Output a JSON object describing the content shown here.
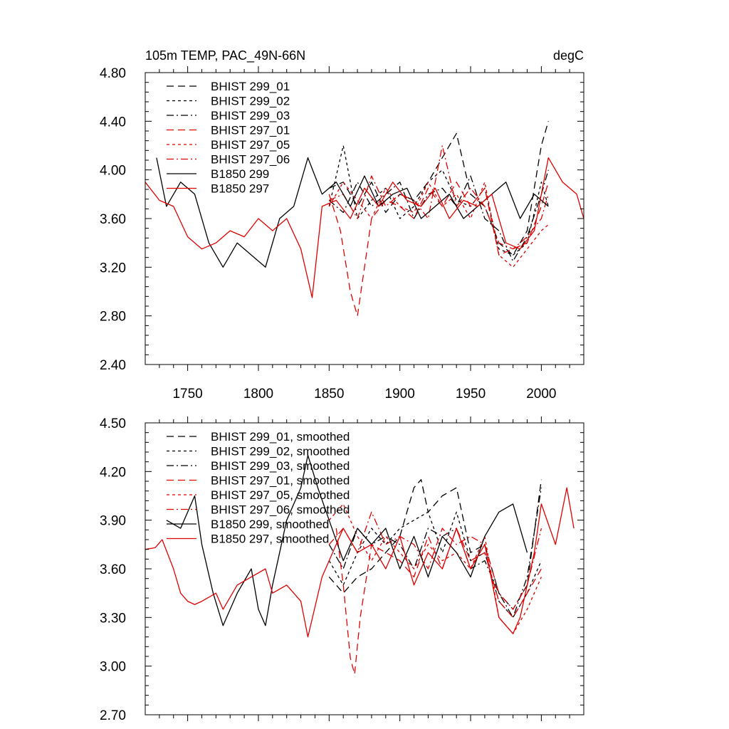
{
  "chart_data": [
    {
      "type": "line",
      "title": "105m TEMP, PAC_49N-66N",
      "units": "degC",
      "xlim": [
        1720,
        2030
      ],
      "ylim": [
        2.4,
        4.8
      ],
      "x_ticks": [
        1750,
        1800,
        1850,
        1900,
        1950,
        2000
      ],
      "x_tick_labels": [
        "1750",
        "1800",
        "1850",
        "1900",
        "1950",
        "2000"
      ],
      "y_ticks": [
        2.4,
        2.8,
        3.2,
        3.6,
        4.0,
        4.4,
        4.8
      ],
      "y_tick_labels": [
        "2.40",
        "2.80",
        "3.20",
        "3.60",
        "4.00",
        "4.40",
        "4.80"
      ],
      "legend": [
        {
          "label": "BHIST 299_01",
          "color": "#000000",
          "dash": "long-dash"
        },
        {
          "label": "BHIST 299_02",
          "color": "#000000",
          "dash": "short-dash"
        },
        {
          "label": "BHIST 299_03",
          "color": "#000000",
          "dash": "dash-dot"
        },
        {
          "label": "BHIST 297_01",
          "color": "#e00000",
          "dash": "long-dash"
        },
        {
          "label": "BHIST 297_05",
          "color": "#e00000",
          "dash": "short-dash"
        },
        {
          "label": "BHIST 297_06",
          "color": "#e00000",
          "dash": "dash-dot"
        },
        {
          "label": "B1850 299",
          "color": "#000000",
          "dash": "solid"
        },
        {
          "label": "B1850 297",
          "color": "#e00000",
          "dash": "solid"
        }
      ],
      "series": [
        {
          "name": "BHIST 299_01",
          "color": "#000000",
          "dash": "long-dash",
          "x": [
            1850,
            1860,
            1870,
            1880,
            1890,
            1900,
            1910,
            1920,
            1930,
            1940,
            1950,
            1960,
            1970,
            1980,
            1990,
            2000,
            2005
          ],
          "y": [
            3.85,
            3.9,
            3.7,
            3.9,
            3.65,
            3.8,
            3.75,
            3.9,
            4.1,
            4.3,
            3.8,
            3.7,
            3.4,
            3.3,
            3.5,
            4.2,
            4.4
          ]
        },
        {
          "name": "BHIST 299_02",
          "color": "#000000",
          "dash": "short-dash",
          "x": [
            1850,
            1860,
            1870,
            1880,
            1890,
            1900,
            1910,
            1920,
            1930,
            1940,
            1950,
            1960,
            1970,
            1980,
            1990,
            2000,
            2005
          ],
          "y": [
            3.7,
            4.2,
            3.6,
            3.75,
            3.85,
            3.6,
            3.7,
            3.9,
            4.0,
            3.75,
            3.7,
            3.85,
            3.35,
            3.3,
            3.4,
            3.9,
            3.7
          ]
        },
        {
          "name": "BHIST 299_03",
          "color": "#000000",
          "dash": "dash-dot",
          "x": [
            1850,
            1860,
            1870,
            1880,
            1890,
            1900,
            1910,
            1920,
            1930,
            1940,
            1950,
            1960,
            1970,
            1980,
            1990,
            2000,
            2005
          ],
          "y": [
            3.75,
            3.65,
            3.9,
            3.7,
            3.8,
            3.9,
            3.6,
            3.8,
            3.85,
            3.7,
            3.95,
            3.6,
            3.5,
            3.25,
            3.45,
            3.8,
            4.0
          ]
        },
        {
          "name": "BHIST 297_01",
          "color": "#e00000",
          "dash": "long-dash",
          "x": [
            1850,
            1858,
            1865,
            1870,
            1880,
            1890,
            1900,
            1910,
            1920,
            1930,
            1940,
            1950,
            1960,
            1970,
            1980,
            1990,
            2000,
            2005
          ],
          "y": [
            3.8,
            3.5,
            3.0,
            2.8,
            3.6,
            3.75,
            3.7,
            3.6,
            3.85,
            3.7,
            3.9,
            3.7,
            3.85,
            3.3,
            3.35,
            3.4,
            3.7,
            3.9
          ]
        },
        {
          "name": "BHIST 297_05",
          "color": "#e00000",
          "dash": "short-dash",
          "x": [
            1850,
            1860,
            1870,
            1880,
            1890,
            1900,
            1910,
            1920,
            1930,
            1940,
            1950,
            1960,
            1970,
            1980,
            1990,
            2000,
            2005
          ],
          "y": [
            3.7,
            3.9,
            3.75,
            3.6,
            3.85,
            3.7,
            3.65,
            3.9,
            3.7,
            3.8,
            3.6,
            3.9,
            3.3,
            3.2,
            3.35,
            3.5,
            3.55
          ]
        },
        {
          "name": "BHIST 297_06",
          "color": "#e00000",
          "dash": "dash-dot",
          "x": [
            1850,
            1860,
            1870,
            1880,
            1890,
            1900,
            1910,
            1920,
            1930,
            1940,
            1950,
            1960,
            1970,
            1980,
            1990,
            2000,
            2005
          ],
          "y": [
            3.75,
            3.8,
            3.6,
            3.95,
            3.7,
            3.8,
            3.75,
            3.6,
            4.2,
            3.7,
            3.85,
            3.7,
            3.4,
            3.35,
            3.45,
            3.6,
            3.8
          ]
        },
        {
          "name": "B1850 299",
          "color": "#000000",
          "dash": "solid",
          "x": [
            1728,
            1735,
            1745,
            1755,
            1765,
            1775,
            1785,
            1795,
            1805,
            1815,
            1825,
            1835,
            1845,
            1855,
            1865,
            1875,
            1885,
            1895,
            1905,
            1915,
            1925,
            1935,
            1945,
            1955,
            1965,
            1975,
            1985,
            1995,
            2005
          ],
          "y": [
            4.1,
            3.7,
            3.9,
            3.8,
            3.4,
            3.2,
            3.4,
            3.3,
            3.2,
            3.6,
            3.7,
            4.1,
            3.8,
            3.9,
            3.7,
            3.95,
            3.7,
            3.8,
            3.85,
            3.6,
            3.7,
            3.8,
            3.6,
            3.7,
            3.8,
            3.9,
            3.6,
            3.8,
            3.7
          ]
        },
        {
          "name": "B1850 297",
          "color": "#e00000",
          "dash": "solid",
          "x": [
            1720,
            1730,
            1740,
            1750,
            1760,
            1770,
            1780,
            1790,
            1800,
            1810,
            1820,
            1830,
            1838,
            1845,
            1855,
            1865,
            1875,
            1885,
            1895,
            1905,
            1915,
            1925,
            1935,
            1945,
            1955,
            1965,
            1975,
            1985,
            1995,
            2005,
            2015,
            2025,
            2030
          ],
          "y": [
            3.9,
            3.75,
            3.7,
            3.45,
            3.35,
            3.4,
            3.5,
            3.45,
            3.6,
            3.5,
            3.6,
            3.35,
            2.95,
            3.7,
            3.75,
            3.6,
            3.85,
            3.7,
            3.9,
            3.75,
            3.7,
            3.85,
            3.6,
            3.75,
            3.7,
            3.8,
            3.4,
            3.35,
            3.5,
            4.1,
            3.9,
            3.8,
            3.6
          ]
        }
      ]
    },
    {
      "type": "line",
      "title": "",
      "xlim": [
        1720,
        2030
      ],
      "ylim": [
        2.7,
        4.5
      ],
      "x_ticks": [
        1750,
        1800,
        1850,
        1900,
        1950,
        2000
      ],
      "y_ticks": [
        2.7,
        3.0,
        3.3,
        3.6,
        3.9,
        4.2,
        4.5
      ],
      "y_tick_labels": [
        "2.70",
        "3.00",
        "3.30",
        "3.60",
        "3.90",
        "4.20",
        "4.50"
      ],
      "legend": [
        {
          "label": "BHIST 299_01, smoothed",
          "color": "#000000",
          "dash": "long-dash"
        },
        {
          "label": "BHIST 299_02, smoothed",
          "color": "#000000",
          "dash": "short-dash"
        },
        {
          "label": "BHIST 299_03, smoothed",
          "color": "#000000",
          "dash": "dash-dot"
        },
        {
          "label": "BHIST 297_01, smoothed",
          "color": "#e00000",
          "dash": "long-dash"
        },
        {
          "label": "BHIST 297_05, smoothed",
          "color": "#e00000",
          "dash": "short-dash"
        },
        {
          "label": "BHIST 297_06, smoothed",
          "color": "#e00000",
          "dash": "dash-dot"
        },
        {
          "label": "B1850 299, smoothed",
          "color": "#000000",
          "dash": "solid"
        },
        {
          "label": "B1850 297, smoothed",
          "color": "#e00000",
          "dash": "solid"
        }
      ],
      "series": [
        {
          "name": "BHIST 299_01, smoothed",
          "color": "#000000",
          "dash": "long-dash",
          "x": [
            1850,
            1860,
            1870,
            1880,
            1890,
            1900,
            1910,
            1915,
            1920,
            1930,
            1940,
            1950,
            1960,
            1970,
            1980,
            1990,
            2000
          ],
          "y": [
            3.55,
            3.45,
            3.55,
            3.6,
            3.7,
            3.8,
            4.1,
            4.15,
            3.95,
            4.05,
            4.1,
            3.7,
            3.75,
            3.45,
            3.35,
            3.5,
            4.15
          ]
        },
        {
          "name": "BHIST 299_02, smoothed",
          "color": "#000000",
          "dash": "short-dash",
          "x": [
            1850,
            1860,
            1870,
            1880,
            1890,
            1900,
            1910,
            1920,
            1930,
            1940,
            1950,
            1960,
            1970,
            1980,
            1990,
            2000
          ],
          "y": [
            3.65,
            3.5,
            3.7,
            3.85,
            3.75,
            3.85,
            3.9,
            3.95,
            3.7,
            3.95,
            3.65,
            3.7,
            3.4,
            3.3,
            3.45,
            3.65
          ]
        },
        {
          "name": "BHIST 299_03, smoothed",
          "color": "#000000",
          "dash": "dash-dot",
          "x": [
            1850,
            1860,
            1870,
            1880,
            1890,
            1900,
            1910,
            1920,
            1930,
            1940,
            1950,
            1960,
            1970,
            1980,
            1990,
            2000
          ],
          "y": [
            3.75,
            3.6,
            3.85,
            3.75,
            3.8,
            3.75,
            3.6,
            3.85,
            3.8,
            3.85,
            3.6,
            3.65,
            3.45,
            3.3,
            3.55,
            4.1
          ]
        },
        {
          "name": "BHIST 297_01, smoothed",
          "color": "#e00000",
          "dash": "long-dash",
          "x": [
            1855,
            1860,
            1865,
            1868,
            1872,
            1880,
            1890,
            1900,
            1910,
            1920,
            1930,
            1940,
            1950,
            1960,
            1970,
            1980,
            1990,
            2000
          ],
          "y": [
            3.85,
            3.5,
            3.05,
            2.95,
            3.3,
            3.75,
            3.7,
            3.65,
            3.55,
            3.8,
            3.6,
            3.85,
            3.65,
            3.7,
            3.4,
            3.3,
            3.45,
            3.6
          ]
        },
        {
          "name": "BHIST 297_05, smoothed",
          "color": "#e00000",
          "dash": "short-dash",
          "x": [
            1850,
            1860,
            1870,
            1880,
            1890,
            1900,
            1910,
            1920,
            1930,
            1940,
            1950,
            1960,
            1970,
            1980,
            1990,
            2000
          ],
          "y": [
            3.9,
            4.0,
            3.8,
            3.65,
            3.8,
            3.7,
            3.6,
            3.75,
            3.65,
            3.7,
            3.6,
            3.8,
            3.3,
            3.2,
            3.35,
            3.55
          ]
        },
        {
          "name": "BHIST 297_06, smoothed",
          "color": "#e00000",
          "dash": "dash-dot",
          "x": [
            1850,
            1860,
            1870,
            1880,
            1890,
            1900,
            1910,
            1920,
            1930,
            1940,
            1950,
            1960,
            1970,
            1980,
            1990,
            2000
          ],
          "y": [
            3.75,
            3.85,
            3.7,
            3.95,
            3.75,
            3.8,
            3.75,
            3.6,
            3.85,
            3.75,
            3.8,
            3.75,
            3.45,
            3.35,
            3.5,
            3.85
          ]
        },
        {
          "name": "B1850 299, smoothed",
          "color": "#000000",
          "dash": "solid",
          "x": [
            1735,
            1745,
            1755,
            1760,
            1768,
            1775,
            1785,
            1795,
            1800,
            1805,
            1810,
            1820,
            1830,
            1835,
            1842,
            1850,
            1860,
            1870,
            1880,
            1890,
            1900,
            1910,
            1920,
            1930,
            1940,
            1950,
            1960,
            1970,
            1980,
            1990
          ],
          "y": [
            3.9,
            3.85,
            4.05,
            3.75,
            3.45,
            3.25,
            3.45,
            3.6,
            3.35,
            3.25,
            3.5,
            3.9,
            4.1,
            4.3,
            4.1,
            3.9,
            3.65,
            3.85,
            3.75,
            3.85,
            3.6,
            3.8,
            3.55,
            3.8,
            3.7,
            3.55,
            3.8,
            3.95,
            4.0,
            3.7
          ]
        },
        {
          "name": "B1850 297, smoothed",
          "color": "#e00000",
          "dash": "solid",
          "x": [
            1720,
            1727,
            1732,
            1740,
            1745,
            1750,
            1755,
            1760,
            1770,
            1775,
            1785,
            1795,
            1805,
            1810,
            1820,
            1830,
            1835,
            1845,
            1850,
            1860,
            1870,
            1880,
            1890,
            1900,
            1910,
            1920,
            1930,
            1940,
            1950,
            1960,
            1970,
            1980,
            1985,
            1995,
            2000,
            2010,
            2018,
            2023
          ],
          "y": [
            3.72,
            3.73,
            3.78,
            3.6,
            3.45,
            3.4,
            3.38,
            3.4,
            3.45,
            3.35,
            3.5,
            3.55,
            3.6,
            3.45,
            3.5,
            3.4,
            3.18,
            3.55,
            3.65,
            3.85,
            3.7,
            3.75,
            3.6,
            3.8,
            3.5,
            3.7,
            3.6,
            3.85,
            3.6,
            3.75,
            3.3,
            3.2,
            3.3,
            3.7,
            4.0,
            3.75,
            4.1,
            3.85
          ]
        }
      ]
    }
  ]
}
